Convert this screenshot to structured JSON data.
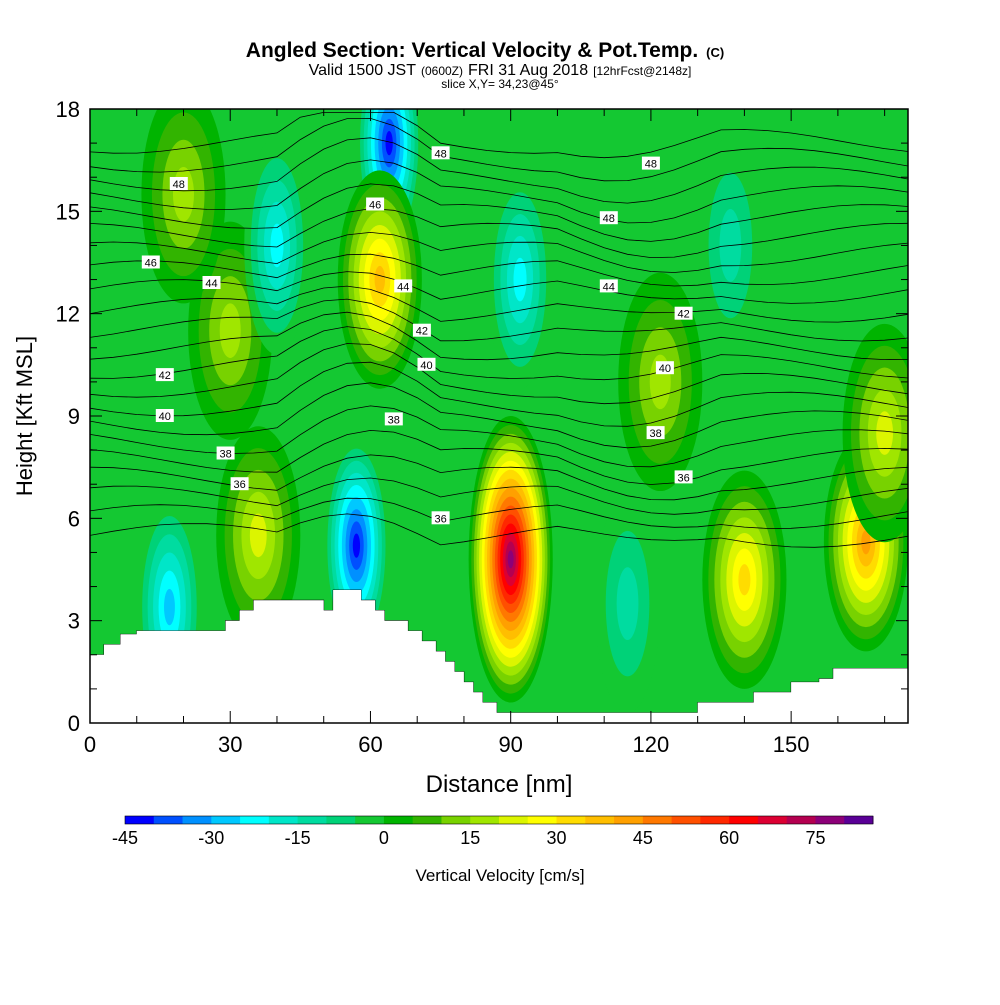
{
  "title": {
    "main": "Angled Section: Vertical Velocity & Pot.Temp.",
    "main_tag": "(C)",
    "valid_prefix": "Valid 1500 JST",
    "valid_utc": "(0600Z)",
    "valid_date": "FRI 31 Aug 2018",
    "forecast": "[12hrFcst@2148z]",
    "slice": "slice X,Y= 34,23@45°"
  },
  "chart_data": {
    "type": "heatmap",
    "xlabel": "Distance [nm]",
    "ylabel": "Height [Kft MSL]",
    "xlim": [
      0,
      175
    ],
    "ylim": [
      0,
      18
    ],
    "x_ticks": [
      0,
      30,
      60,
      90,
      120,
      150
    ],
    "y_ticks": [
      0,
      3,
      6,
      9,
      12,
      15,
      18
    ],
    "colorbar": {
      "label": "Vertical Velocity [cm/s]",
      "range": [
        -45,
        80
      ],
      "tick_values": [
        -45,
        -30,
        -15,
        0,
        15,
        30,
        45,
        60,
        75
      ],
      "bin_width": 5,
      "colors": [
        "#0000ff",
        "#0050ff",
        "#0090ff",
        "#00c8ff",
        "#00ffff",
        "#00e6c8",
        "#00dca0",
        "#00d278",
        "#14c832",
        "#00b400",
        "#32b400",
        "#78d200",
        "#a0e600",
        "#dcf500",
        "#ffff00",
        "#ffdc00",
        "#ffbe00",
        "#ffa000",
        "#ff7800",
        "#ff5000",
        "#ff2800",
        "#ff0000",
        "#dc0032",
        "#b40050",
        "#8c0078",
        "#5a0096"
      ]
    },
    "vertical_velocity_cells": [
      {
        "x": 17,
        "y": 3.4,
        "value": -30
      },
      {
        "x": 30,
        "y": 11.5,
        "value": 20
      },
      {
        "x": 20,
        "y": 15.5,
        "value": 20
      },
      {
        "x": 36,
        "y": 5.5,
        "value": 25
      },
      {
        "x": 40,
        "y": 14,
        "value": -25
      },
      {
        "x": 57,
        "y": 5.2,
        "value": -45
      },
      {
        "x": 64,
        "y": 17,
        "value": -45
      },
      {
        "x": 62,
        "y": 13,
        "value": 40
      },
      {
        "x": 90,
        "y": 4.8,
        "value": 78
      },
      {
        "x": 92,
        "y": 13,
        "value": -25
      },
      {
        "x": 115,
        "y": 3.5,
        "value": -15
      },
      {
        "x": 122,
        "y": 10,
        "value": 20
      },
      {
        "x": 140,
        "y": 4.2,
        "value": 35
      },
      {
        "x": 166,
        "y": 5.3,
        "value": 45
      },
      {
        "x": 170,
        "y": 8.5,
        "value": 25
      },
      {
        "x": 137,
        "y": 14,
        "value": -15
      }
    ],
    "potential_temperature_labels": [
      {
        "label": "48",
        "x": 19,
        "y": 15.8
      },
      {
        "label": "46",
        "x": 13,
        "y": 13.5
      },
      {
        "label": "44",
        "x": 26,
        "y": 12.9
      },
      {
        "label": "42",
        "x": 16,
        "y": 10.2
      },
      {
        "label": "40",
        "x": 16,
        "y": 9.0
      },
      {
        "label": "38",
        "x": 29,
        "y": 7.9
      },
      {
        "label": "36",
        "x": 32,
        "y": 7.0
      },
      {
        "label": "46",
        "x": 61,
        "y": 15.2
      },
      {
        "label": "44",
        "x": 67,
        "y": 12.8
      },
      {
        "label": "42",
        "x": 71,
        "y": 11.5
      },
      {
        "label": "40",
        "x": 72,
        "y": 10.5
      },
      {
        "label": "38",
        "x": 65,
        "y": 8.9
      },
      {
        "label": "36",
        "x": 75,
        "y": 6.0
      },
      {
        "label": "48",
        "x": 75,
        "y": 16.7
      },
      {
        "label": "48",
        "x": 120,
        "y": 16.4
      },
      {
        "label": "48",
        "x": 111,
        "y": 14.8
      },
      {
        "label": "44",
        "x": 111,
        "y": 12.8
      },
      {
        "label": "42",
        "x": 127,
        "y": 12.0
      },
      {
        "label": "40",
        "x": 123,
        "y": 10.4
      },
      {
        "label": "38",
        "x": 121,
        "y": 8.5
      },
      {
        "label": "36",
        "x": 127,
        "y": 7.2
      }
    ],
    "terrain": [
      [
        0,
        2.0
      ],
      [
        3,
        2.0
      ],
      [
        3,
        2.3
      ],
      [
        6.5,
        2.3
      ],
      [
        6.5,
        2.6
      ],
      [
        10,
        2.6
      ],
      [
        10,
        2.7
      ],
      [
        29,
        2.7
      ],
      [
        29,
        3.0
      ],
      [
        32,
        3.0
      ],
      [
        32,
        3.3
      ],
      [
        35,
        3.3
      ],
      [
        35,
        3.6
      ],
      [
        50,
        3.6
      ],
      [
        50,
        3.3
      ],
      [
        52,
        3.3
      ],
      [
        52,
        3.9
      ],
      [
        58,
        3.9
      ],
      [
        58,
        3.6
      ],
      [
        61,
        3.6
      ],
      [
        61,
        3.3
      ],
      [
        63,
        3.3
      ],
      [
        63,
        3.0
      ],
      [
        68,
        3.0
      ],
      [
        68,
        2.7
      ],
      [
        71,
        2.7
      ],
      [
        71,
        2.4
      ],
      [
        74,
        2.4
      ],
      [
        74,
        2.1
      ],
      [
        76,
        2.1
      ],
      [
        76,
        1.8
      ],
      [
        78,
        1.8
      ],
      [
        78,
        1.5
      ],
      [
        80,
        1.5
      ],
      [
        80,
        1.2
      ],
      [
        82,
        1.2
      ],
      [
        82,
        0.9
      ],
      [
        84,
        0.9
      ],
      [
        84,
        0.6
      ],
      [
        87,
        0.6
      ],
      [
        87,
        0.3
      ],
      [
        130,
        0.3
      ],
      [
        130,
        0.6
      ],
      [
        142,
        0.6
      ],
      [
        142,
        0.9
      ],
      [
        150,
        0.9
      ],
      [
        150,
        1.2
      ],
      [
        156,
        1.2
      ],
      [
        156,
        1.3
      ],
      [
        159,
        1.3
      ],
      [
        159,
        1.6
      ],
      [
        175,
        1.6
      ],
      [
        175,
        0
      ],
      [
        0,
        0
      ]
    ]
  }
}
